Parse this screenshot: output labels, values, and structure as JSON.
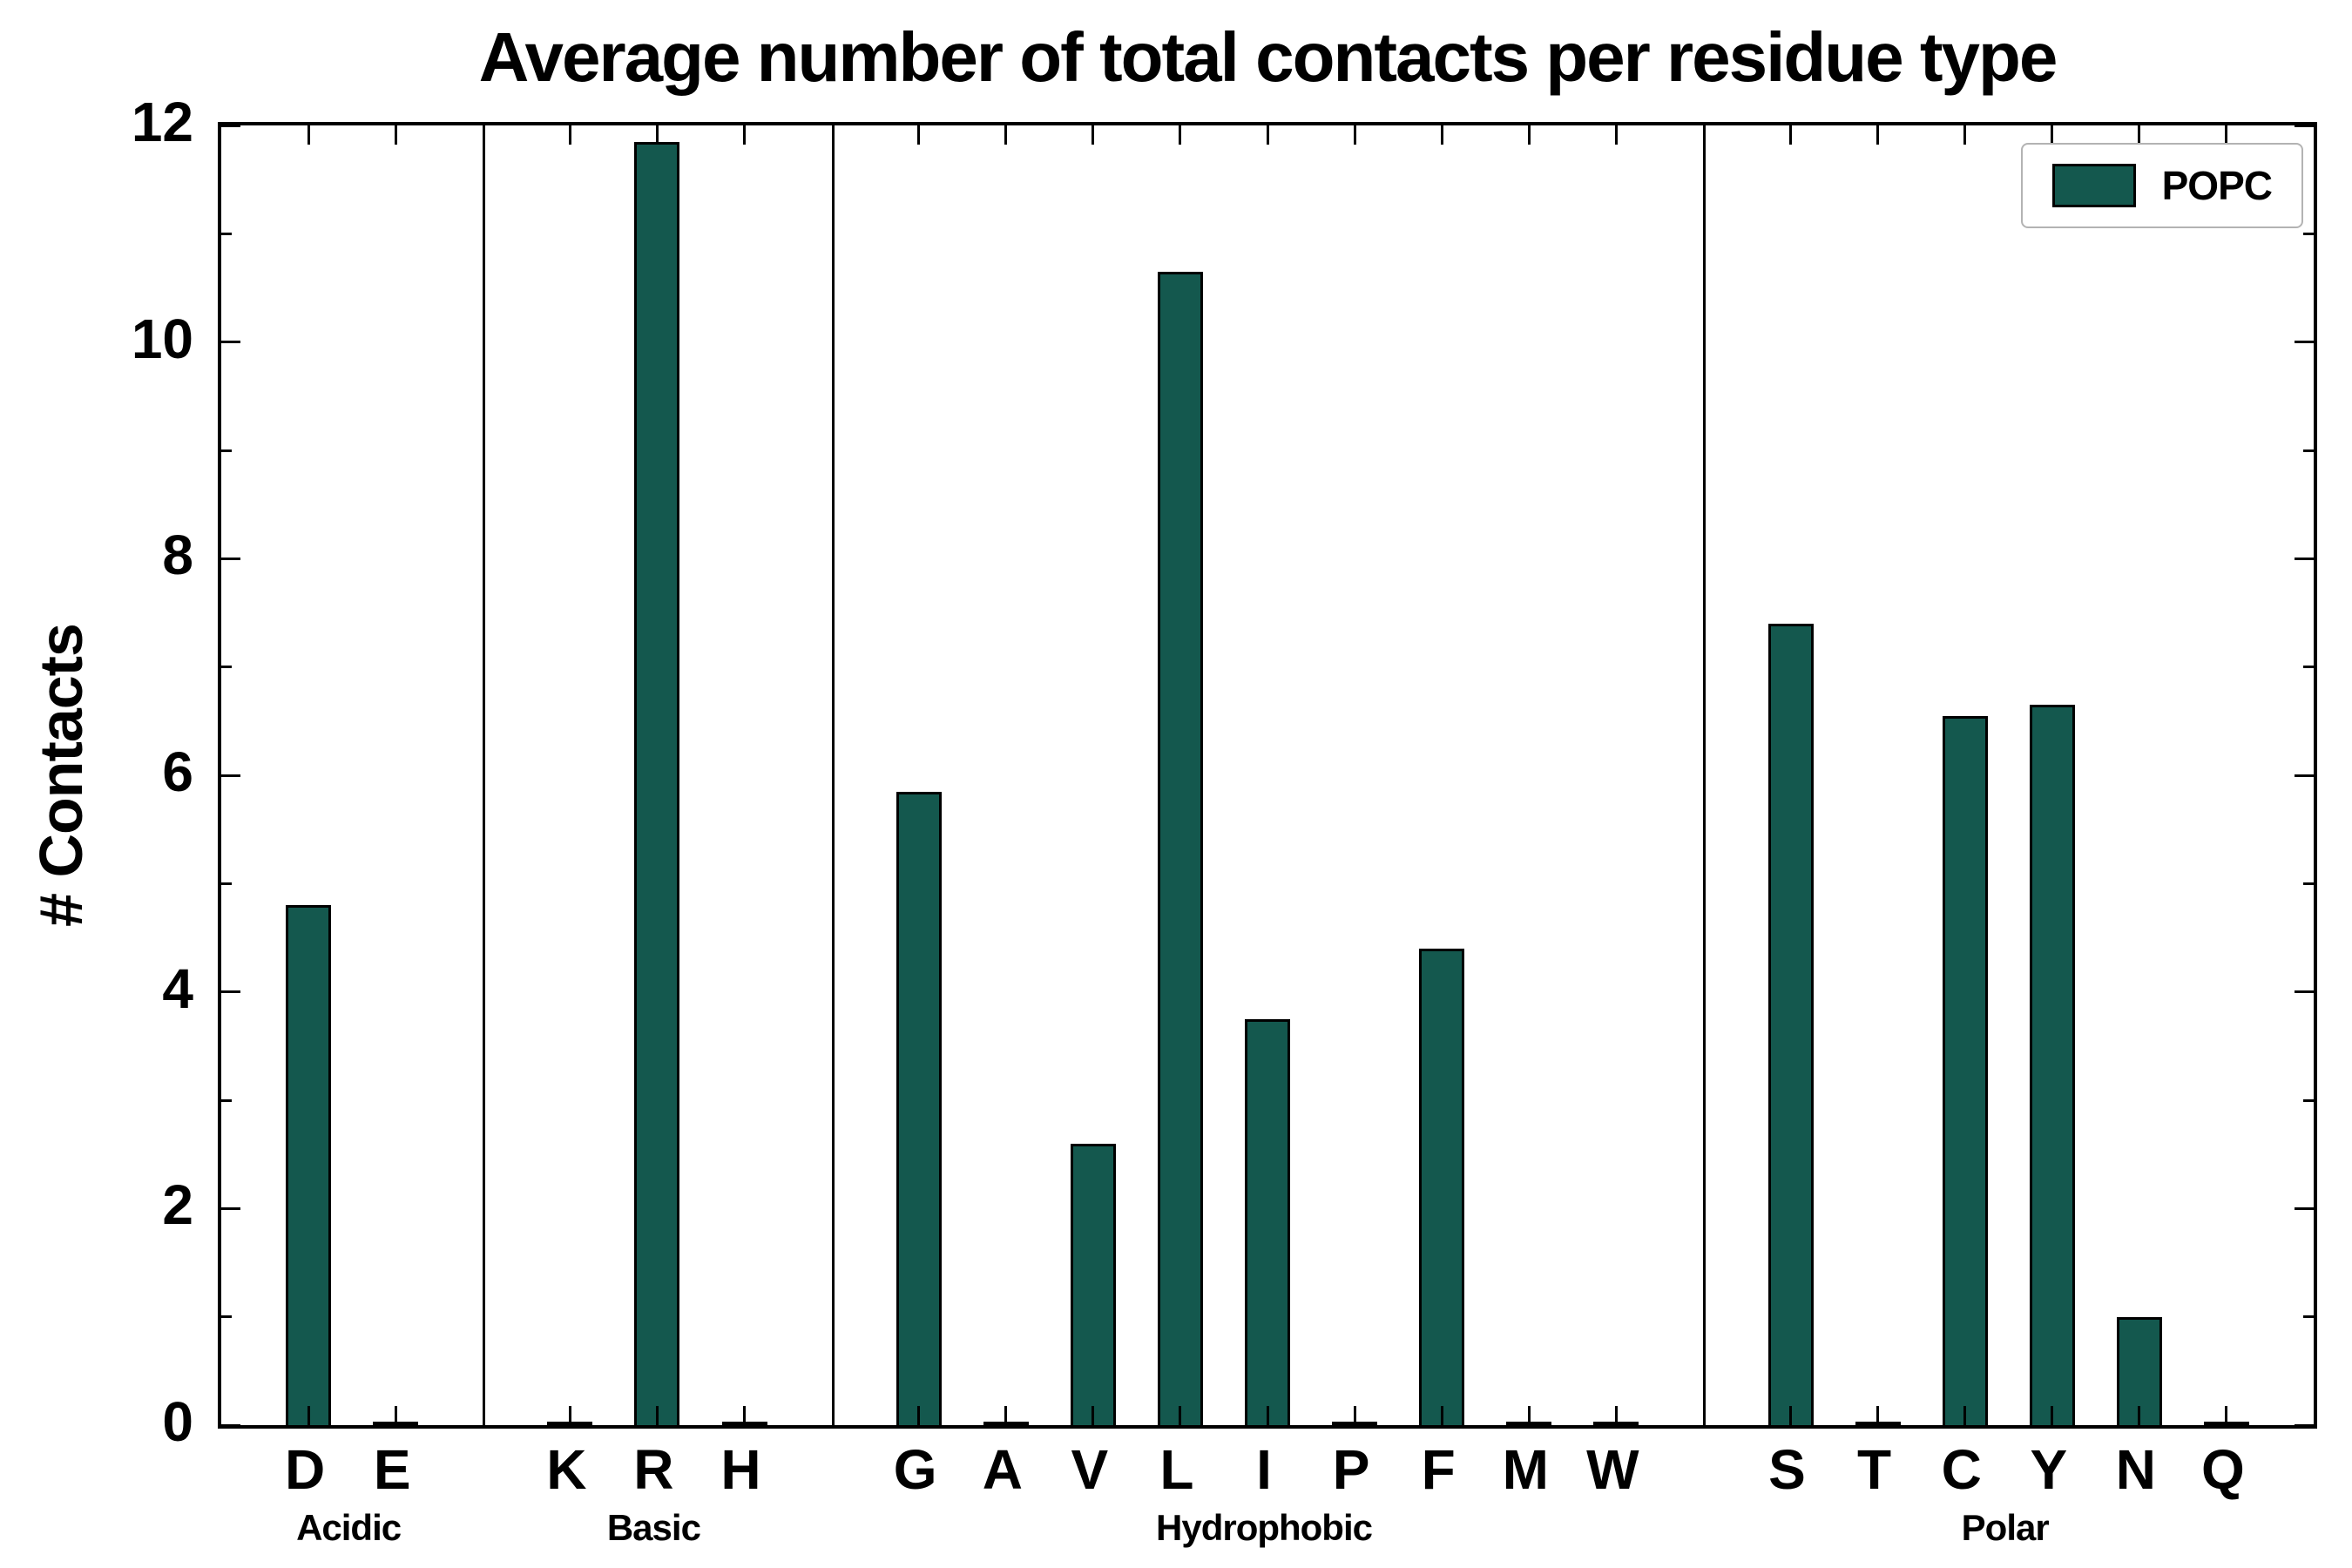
{
  "title": "Average number of total contacts per residue type",
  "colors": {
    "bar_fill": "#14584E",
    "bar_edge": "#000000",
    "axis": "#000000",
    "legend_border": "#b3b3b3",
    "background": "#ffffff"
  },
  "chart_data": {
    "type": "bar",
    "title": "Average number of total contacts per residue type",
    "xlabel": "",
    "ylabel": "# Contacts",
    "ylim": [
      0,
      12
    ],
    "yticks": [
      0,
      2,
      4,
      6,
      8,
      10,
      12
    ],
    "yticks_minor": [
      1,
      3,
      5,
      7,
      9,
      11
    ],
    "grid": false,
    "legend": [
      "POPC"
    ],
    "legend_position": "upper right",
    "groups": [
      {
        "label": "Acidic",
        "categories": [
          "D",
          "E"
        ],
        "values": [
          4.8,
          0
        ]
      },
      {
        "label": "Basic",
        "categories": [
          "K",
          "R",
          "H"
        ],
        "values": [
          0,
          11.85,
          0
        ]
      },
      {
        "label": "Hydrophobic",
        "categories": [
          "G",
          "A",
          "V",
          "L",
          "I",
          "P",
          "F",
          "M",
          "W"
        ],
        "values": [
          5.85,
          0,
          2.6,
          10.65,
          3.75,
          0,
          4.4,
          0,
          0
        ]
      },
      {
        "label": "Polar",
        "categories": [
          "S",
          "T",
          "C",
          "Y",
          "N",
          "Q"
        ],
        "values": [
          7.4,
          0,
          6.55,
          6.65,
          1.0,
          0
        ]
      }
    ]
  }
}
